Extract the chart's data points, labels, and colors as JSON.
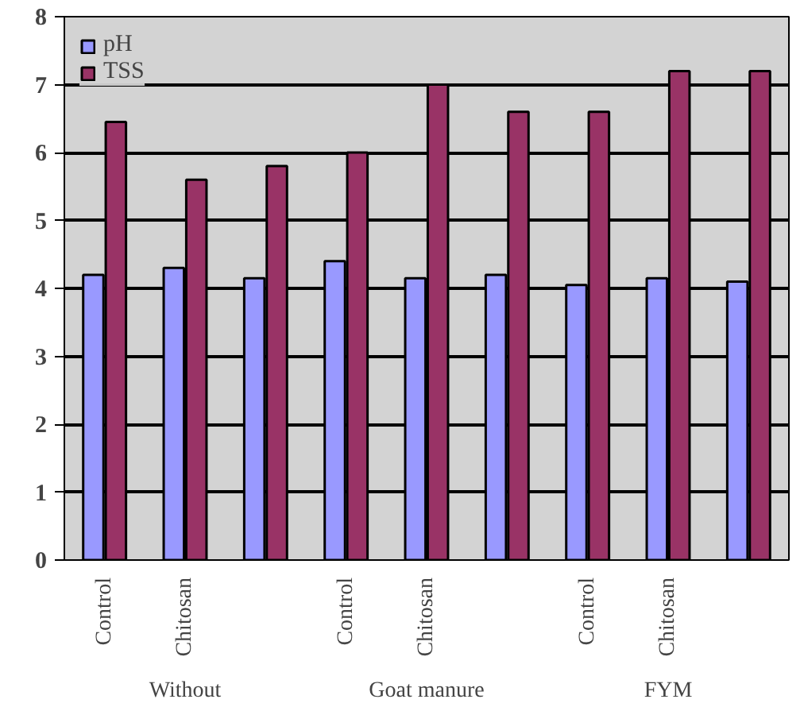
{
  "chart_data": {
    "type": "bar",
    "categories": [
      "Control",
      "Chitosan",
      null,
      "Control",
      "Chitosan",
      null,
      "Control",
      "Chitosan",
      null
    ],
    "annotations": [
      "Without",
      "Goat manure",
      "FYM"
    ],
    "series": [
      {
        "name": "pH",
        "color": "#9999ff",
        "values": [
          4.2,
          4.3,
          4.15,
          4.4,
          4.15,
          4.2,
          4.05,
          4.15,
          4.1
        ]
      },
      {
        "name": "TSS",
        "color": "#993366",
        "values": [
          6.45,
          5.6,
          5.8,
          6.0,
          7.0,
          6.6,
          6.6,
          7.2,
          7.2
        ]
      }
    ],
    "ylim": [
      0,
      8
    ],
    "yticks": [
      0,
      1,
      2,
      3,
      4,
      5,
      6,
      7,
      8
    ],
    "grid": "y",
    "legend": "top left"
  }
}
